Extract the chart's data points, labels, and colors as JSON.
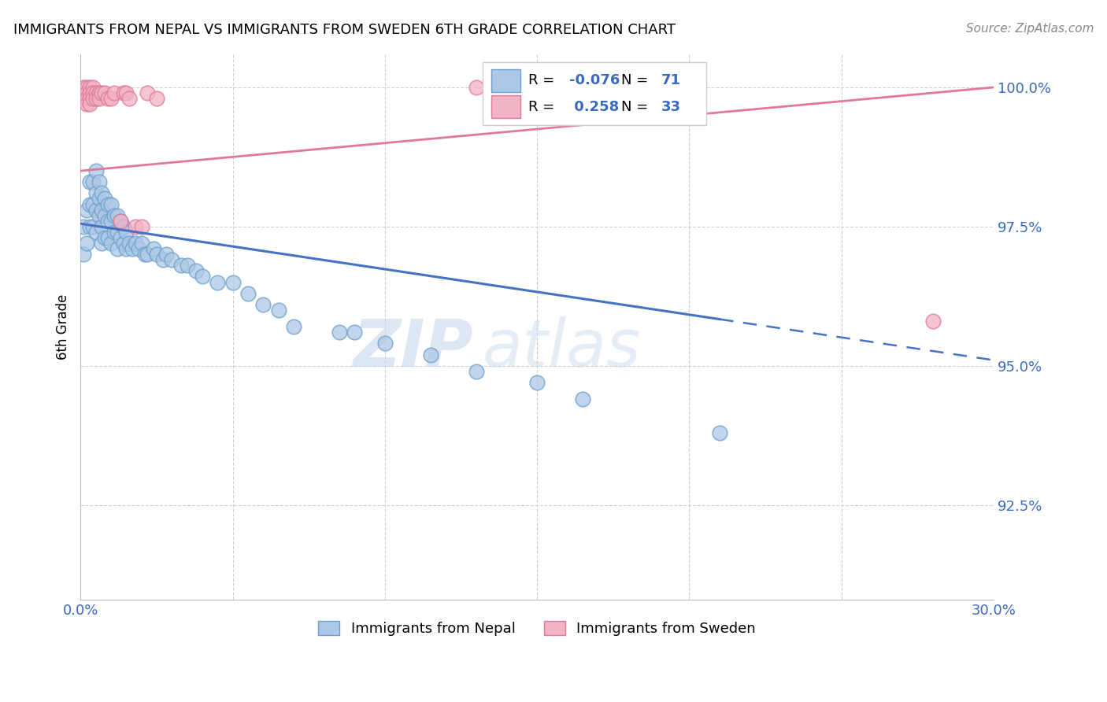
{
  "title": "IMMIGRANTS FROM NEPAL VS IMMIGRANTS FROM SWEDEN 6TH GRADE CORRELATION CHART",
  "source": "Source: ZipAtlas.com",
  "ylabel": "6th Grade",
  "ytick_labels": [
    "100.0%",
    "97.5%",
    "95.0%",
    "92.5%"
  ],
  "ytick_values": [
    1.0,
    0.975,
    0.95,
    0.925
  ],
  "xlim": [
    0.0,
    0.3
  ],
  "ylim": [
    0.908,
    1.006
  ],
  "nepal_color": "#adc8e6",
  "sweden_color": "#f2b3c4",
  "nepal_edge": "#6da0cc",
  "sweden_edge": "#e07898",
  "trendline_nepal_color": "#4472c4",
  "trendline_sweden_color": "#e07898",
  "legend_nepal": "Immigrants from Nepal",
  "legend_sweden": "Immigrants from Sweden",
  "r_nepal": "-0.076",
  "n_nepal": "71",
  "r_sweden": "0.258",
  "n_sweden": "33",
  "watermark_zip": "ZIP",
  "watermark_atlas": "atlas",
  "nepal_x": [
    0.001,
    0.001,
    0.002,
    0.002,
    0.003,
    0.003,
    0.003,
    0.004,
    0.004,
    0.004,
    0.005,
    0.005,
    0.005,
    0.005,
    0.006,
    0.006,
    0.006,
    0.007,
    0.007,
    0.007,
    0.007,
    0.008,
    0.008,
    0.008,
    0.009,
    0.009,
    0.009,
    0.01,
    0.01,
    0.01,
    0.011,
    0.011,
    0.012,
    0.012,
    0.012,
    0.013,
    0.013,
    0.014,
    0.014,
    0.015,
    0.015,
    0.016,
    0.017,
    0.018,
    0.019,
    0.02,
    0.021,
    0.022,
    0.024,
    0.025,
    0.027,
    0.028,
    0.03,
    0.033,
    0.035,
    0.038,
    0.04,
    0.045,
    0.05,
    0.055,
    0.06,
    0.065,
    0.07,
    0.085,
    0.09,
    0.1,
    0.115,
    0.13,
    0.15,
    0.165,
    0.21
  ],
  "nepal_y": [
    0.975,
    0.97,
    0.978,
    0.972,
    0.983,
    0.979,
    0.975,
    0.983,
    0.979,
    0.975,
    0.985,
    0.981,
    0.978,
    0.974,
    0.983,
    0.98,
    0.977,
    0.981,
    0.978,
    0.975,
    0.972,
    0.98,
    0.977,
    0.973,
    0.979,
    0.976,
    0.973,
    0.979,
    0.976,
    0.972,
    0.977,
    0.974,
    0.977,
    0.974,
    0.971,
    0.976,
    0.973,
    0.975,
    0.972,
    0.974,
    0.971,
    0.972,
    0.971,
    0.972,
    0.971,
    0.972,
    0.97,
    0.97,
    0.971,
    0.97,
    0.969,
    0.97,
    0.969,
    0.968,
    0.968,
    0.967,
    0.966,
    0.965,
    0.965,
    0.963,
    0.961,
    0.96,
    0.957,
    0.956,
    0.956,
    0.954,
    0.952,
    0.949,
    0.947,
    0.944,
    0.938
  ],
  "sweden_x": [
    0.001,
    0.001,
    0.001,
    0.002,
    0.002,
    0.002,
    0.002,
    0.003,
    0.003,
    0.003,
    0.003,
    0.004,
    0.004,
    0.004,
    0.005,
    0.005,
    0.006,
    0.006,
    0.007,
    0.008,
    0.009,
    0.01,
    0.011,
    0.013,
    0.014,
    0.015,
    0.016,
    0.018,
    0.02,
    0.022,
    0.025,
    0.13,
    0.28
  ],
  "sweden_y": [
    1.0,
    0.999,
    0.998,
    1.0,
    0.999,
    0.998,
    0.997,
    1.0,
    0.999,
    0.998,
    0.997,
    1.0,
    0.999,
    0.998,
    0.999,
    0.998,
    0.999,
    0.998,
    0.999,
    0.999,
    0.998,
    0.998,
    0.999,
    0.976,
    0.999,
    0.999,
    0.998,
    0.975,
    0.975,
    0.999,
    0.998,
    1.0,
    0.958
  ]
}
